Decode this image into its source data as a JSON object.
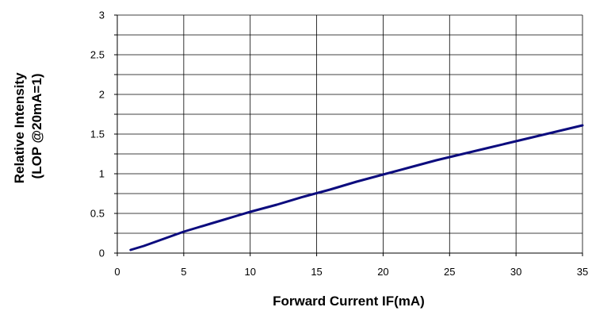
{
  "chart_data": {
    "type": "line",
    "title": "",
    "xlabel": "Forward Current IF(mA)",
    "ylabel": [
      "Relative Intensity",
      "(LOP @20mA=1)"
    ],
    "xlim": [
      0,
      35
    ],
    "ylim": [
      0,
      3
    ],
    "xticks": [
      "0",
      "5",
      "10",
      "15",
      "20",
      "25",
      "30",
      "35"
    ],
    "yticks": [
      "0",
      "0.5",
      "1",
      "1.5",
      "2",
      "2.5",
      "3"
    ],
    "grid": true,
    "legend": "none",
    "series": [
      {
        "color": "#0c0c7e",
        "x": [
          1,
          2,
          3,
          4,
          5,
          6,
          7,
          8,
          9,
          10,
          12,
          14,
          16,
          18,
          20,
          22,
          24,
          26,
          28,
          30,
          32,
          34,
          35
        ],
        "y": [
          0.04,
          0.09,
          0.15,
          0.21,
          0.27,
          0.32,
          0.37,
          0.42,
          0.47,
          0.52,
          0.61,
          0.71,
          0.8,
          0.9,
          0.99,
          1.08,
          1.17,
          1.25,
          1.33,
          1.41,
          1.49,
          1.57,
          1.61
        ]
      }
    ]
  }
}
